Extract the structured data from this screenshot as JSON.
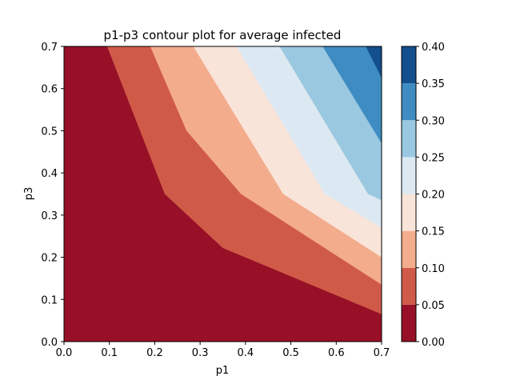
{
  "chart_data": {
    "type": "contour",
    "title": "p1-p3 contour plot for average infected",
    "xlabel": "p1",
    "ylabel": "p3",
    "xlim": [
      0.0,
      0.7
    ],
    "ylim": [
      0.0,
      0.7
    ],
    "x_ticks": [
      "0.0",
      "0.1",
      "0.2",
      "0.3",
      "0.4",
      "0.5",
      "0.6",
      "0.7"
    ],
    "y_ticks": [
      "0.0",
      "0.1",
      "0.2",
      "0.3",
      "0.4",
      "0.5",
      "0.6",
      "0.7"
    ],
    "levels": [
      0.0,
      0.05,
      0.1,
      0.15,
      0.2,
      0.25,
      0.3,
      0.35,
      0.4
    ],
    "colorbar_ticks": [
      "0.00",
      "0.05",
      "0.10",
      "0.15",
      "0.20",
      "0.25",
      "0.30",
      "0.35",
      "0.40"
    ],
    "level_colors": [
      "#971027",
      "#d05a48",
      "#f3ac8c",
      "#f9e4d9",
      "#dde9f2",
      "#9ac8e0",
      "#3e8cc2",
      "#134e8d"
    ],
    "contour_lines": [
      {
        "level": 0.05,
        "points": [
          [
            0.095,
            0.7
          ],
          [
            0.222,
            0.35
          ],
          [
            0.35,
            0.222
          ],
          [
            0.7,
            0.065
          ]
        ]
      },
      {
        "level": 0.1,
        "points": [
          [
            0.19,
            0.7
          ],
          [
            0.27,
            0.5
          ],
          [
            0.39,
            0.35
          ],
          [
            0.7,
            0.135
          ]
        ]
      },
      {
        "level": 0.15,
        "points": [
          [
            0.285,
            0.7
          ],
          [
            0.483,
            0.35
          ],
          [
            0.7,
            0.2
          ]
        ]
      },
      {
        "level": 0.2,
        "points": [
          [
            0.38,
            0.7
          ],
          [
            0.575,
            0.35
          ],
          [
            0.7,
            0.27
          ]
        ]
      },
      {
        "level": 0.25,
        "points": [
          [
            0.475,
            0.7
          ],
          [
            0.67,
            0.35
          ],
          [
            0.7,
            0.335
          ]
        ]
      },
      {
        "level": 0.3,
        "points": [
          [
            0.57,
            0.7
          ],
          [
            0.7,
            0.47
          ]
        ]
      },
      {
        "level": 0.35,
        "points": [
          [
            0.665,
            0.7
          ],
          [
            0.7,
            0.625
          ]
        ]
      }
    ]
  }
}
